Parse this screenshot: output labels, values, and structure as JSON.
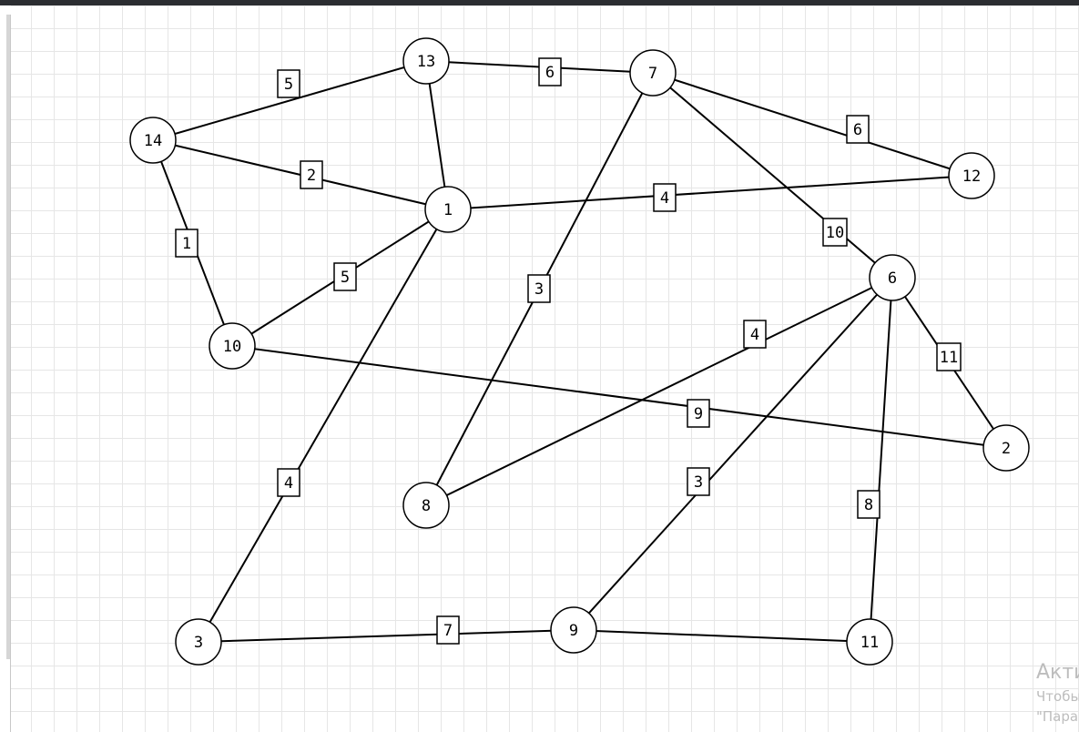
{
  "graph": {
    "nodes": [
      {
        "id": "1",
        "label": "1"
      },
      {
        "id": "2",
        "label": "2"
      },
      {
        "id": "3",
        "label": "3"
      },
      {
        "id": "6",
        "label": "6"
      },
      {
        "id": "7",
        "label": "7"
      },
      {
        "id": "8",
        "label": "8"
      },
      {
        "id": "9",
        "label": "9"
      },
      {
        "id": "10",
        "label": "10"
      },
      {
        "id": "11",
        "label": "11"
      },
      {
        "id": "12",
        "label": "12"
      },
      {
        "id": "13",
        "label": "13"
      },
      {
        "id": "14",
        "label": "14"
      }
    ],
    "edges": [
      {
        "from": "14",
        "to": "13",
        "weight": "5"
      },
      {
        "from": "13",
        "to": "7",
        "weight": "6"
      },
      {
        "from": "14",
        "to": "1",
        "weight": "2"
      },
      {
        "from": "13",
        "to": "1",
        "weight": ""
      },
      {
        "from": "7",
        "to": "12",
        "weight": "6"
      },
      {
        "from": "1",
        "to": "12",
        "weight": "4"
      },
      {
        "from": "7",
        "to": "6",
        "weight": "10"
      },
      {
        "from": "7",
        "to": "8",
        "weight": "3"
      },
      {
        "from": "14",
        "to": "10",
        "weight": "1"
      },
      {
        "from": "10",
        "to": "1",
        "weight": "5"
      },
      {
        "from": "1",
        "to": "3",
        "weight": "4"
      },
      {
        "from": "6",
        "to": "8",
        "weight": "4"
      },
      {
        "from": "6",
        "to": "2",
        "weight": "11"
      },
      {
        "from": "10",
        "to": "2",
        "weight": "9"
      },
      {
        "from": "6",
        "to": "9",
        "weight": "3"
      },
      {
        "from": "6",
        "to": "11",
        "weight": "8"
      },
      {
        "from": "3",
        "to": "9",
        "weight": "7"
      },
      {
        "from": "9",
        "to": "11",
        "weight": ""
      }
    ]
  },
  "watermark": {
    "title": "Активация Windows",
    "line1": "Чтобы активировать Windows, перейдите в раздел",
    "line2": "\"Параметры\"."
  }
}
